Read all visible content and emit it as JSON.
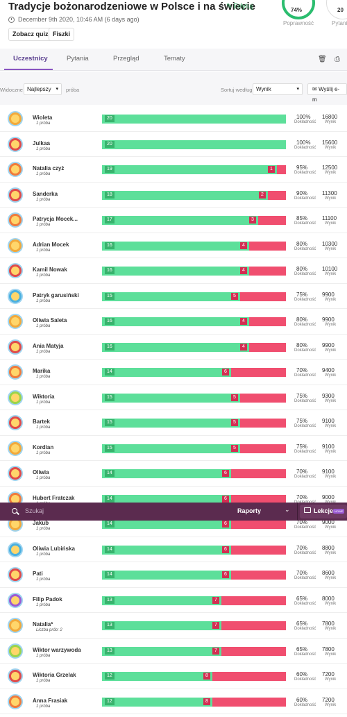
{
  "header": {
    "title": "Tradycje bożonarodzeniowe w Polsce i na świecie",
    "edit_label": "Edytuj",
    "date": "December 9th 2020, 10:46 AM (6 days ago)",
    "quiz_button": "Zobacz quiz",
    "flashcards_button": "Fiszki",
    "accuracy_value": "74%",
    "accuracy_label": "Poprawność",
    "questions_value": "20",
    "questions_label": "Pytania"
  },
  "tabs": [
    {
      "label": "Uczestnicy",
      "active": true
    },
    {
      "label": "Pytania",
      "active": false
    },
    {
      "label": "Przegląd",
      "active": false
    },
    {
      "label": "Tematy",
      "active": false
    }
  ],
  "filters": {
    "visible_label": "Widoczne",
    "visible_value": "Najlepszy",
    "attempt_label": "próba",
    "sort_label": "Sortuj według:",
    "sort_value": "Wynik",
    "email_button": "Wyślij e-m"
  },
  "rows_captions": {
    "accuracy": "Dokładność",
    "score": "Wynik"
  },
  "participants": [
    {
      "name": "Wioleta",
      "attempts": "1 próba",
      "correct": 20,
      "wrong": 0,
      "accuracy": "100%",
      "score": "16800",
      "color": "#f2a93b"
    },
    {
      "name": "Julkaa",
      "attempts": "1 próba",
      "correct": 20,
      "wrong": 0,
      "accuracy": "100%",
      "score": "15600",
      "color": "#e04a4a"
    },
    {
      "name": "Natalia czyż",
      "attempts": "1 próba",
      "correct": 19,
      "wrong": 1,
      "accuracy": "95%",
      "score": "12500",
      "color": "#f07a3b"
    },
    {
      "name": "Sanderka",
      "attempts": "1 próba",
      "correct": 18,
      "wrong": 2,
      "accuracy": "90%",
      "score": "11300",
      "color": "#e04a4a"
    },
    {
      "name": "Patrycja Mocek...",
      "attempts": "1 próba",
      "correct": 17,
      "wrong": 3,
      "accuracy": "85%",
      "score": "11100",
      "color": "#f07a3b"
    },
    {
      "name": "Adrian Mocek",
      "attempts": "1 próba",
      "correct": 16,
      "wrong": 4,
      "accuracy": "80%",
      "score": "10300",
      "color": "#f2a93b"
    },
    {
      "name": "Kamil Nowak",
      "attempts": "1 próba",
      "correct": 16,
      "wrong": 4,
      "accuracy": "80%",
      "score": "10100",
      "color": "#e04a4a"
    },
    {
      "name": "Patryk garusiński",
      "attempts": "1 próba",
      "correct": 15,
      "wrong": 5,
      "accuracy": "75%",
      "score": "9900",
      "color": "#4ab0e0"
    },
    {
      "name": "Oliwia Saleta",
      "attempts": "1 próba",
      "correct": 16,
      "wrong": 4,
      "accuracy": "80%",
      "score": "9900",
      "color": "#f2a93b"
    },
    {
      "name": "Ania Matyja",
      "attempts": "1 próba",
      "correct": 16,
      "wrong": 4,
      "accuracy": "80%",
      "score": "9900",
      "color": "#e04a4a"
    },
    {
      "name": "Marika",
      "attempts": "1 próba",
      "correct": 14,
      "wrong": 6,
      "accuracy": "70%",
      "score": "9400",
      "color": "#f07a3b"
    },
    {
      "name": "Wiktoria",
      "attempts": "1 próba",
      "correct": 15,
      "wrong": 5,
      "accuracy": "75%",
      "score": "9300",
      "color": "#9bd44a"
    },
    {
      "name": "Bartek",
      "attempts": "1 próba",
      "correct": 15,
      "wrong": 5,
      "accuracy": "75%",
      "score": "9100",
      "color": "#e04a4a"
    },
    {
      "name": "Kordian",
      "attempts": "1 próba",
      "correct": 15,
      "wrong": 5,
      "accuracy": "75%",
      "score": "9100",
      "color": "#f2a93b"
    },
    {
      "name": "Oliwia",
      "attempts": "1 próba",
      "correct": 14,
      "wrong": 6,
      "accuracy": "70%",
      "score": "9100",
      "color": "#e04a4a"
    },
    {
      "name": "Hubert Fratczak",
      "attempts": "1 próba",
      "correct": 14,
      "wrong": 6,
      "accuracy": "70%",
      "score": "9000",
      "color": "#f07a3b"
    },
    {
      "name": "Jakub",
      "attempts": "1 próba",
      "correct": 14,
      "wrong": 6,
      "accuracy": "70%",
      "score": "9000",
      "color": "#f2a93b"
    },
    {
      "name": "Oliwia Lubińska",
      "attempts": "1 próba",
      "correct": 14,
      "wrong": 6,
      "accuracy": "70%",
      "score": "8800",
      "color": "#4ab0e0"
    },
    {
      "name": "Pati",
      "attempts": "1 próba",
      "correct": 14,
      "wrong": 6,
      "accuracy": "70%",
      "score": "8600",
      "color": "#e04a4a"
    },
    {
      "name": "Filip Padok",
      "attempts": "1 próba",
      "correct": 13,
      "wrong": 7,
      "accuracy": "65%",
      "score": "8000",
      "color": "#9b5bd3"
    },
    {
      "name": "Natalia*",
      "attempts": "Liczba prób: 2",
      "correct": 13,
      "wrong": 7,
      "accuracy": "65%",
      "score": "7800",
      "color": "#f2a93b"
    },
    {
      "name": "Wiktor warzywoda",
      "attempts": "1 próba",
      "correct": 13,
      "wrong": 7,
      "accuracy": "65%",
      "score": "7800",
      "color": "#9bd44a"
    },
    {
      "name": "Wiktoria Grzelak",
      "attempts": "1 próba",
      "correct": 12,
      "wrong": 8,
      "accuracy": "60%",
      "score": "7200",
      "color": "#e04a4a"
    },
    {
      "name": "Anna Frasiak",
      "attempts": "1 próba",
      "correct": 12,
      "wrong": 8,
      "accuracy": "60%",
      "score": "7200",
      "color": "#f07a3b"
    }
  ],
  "bottom_bar": {
    "search_placeholder": "Szukaj",
    "reports_label": "Raporty",
    "lessons_label": "Lekcje",
    "lessons_badge": "NOWE"
  }
}
